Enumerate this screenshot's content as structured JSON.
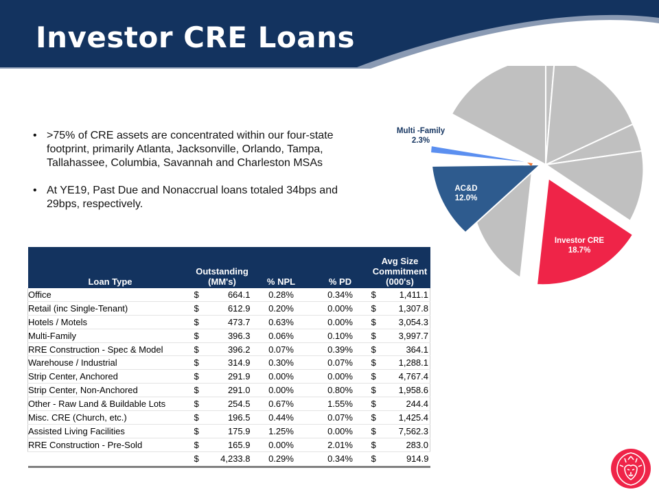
{
  "title": "Investor CRE Loans",
  "colors": {
    "navy": "#13335f",
    "brand_red": "#ef2448",
    "steel_blue": "#2e5b8e",
    "light_blue": "#5b8ff0",
    "gray": "#c0c0c0"
  },
  "bullets": [
    ">75% of CRE assets are concentrated within our four-state footprint, primarily Atlanta, Jacksonville, Orlando, Tampa, Tallahassee, Columbia, Savannah and Charleston MSAs",
    "At YE19, Past Due and Nonaccrual loans totaled 34bps and 29bps, respectively."
  ],
  "chart_data": {
    "type": "pie",
    "slices": [
      {
        "label": "Multi -Family",
        "value_label": "2.3%",
        "value": 2.3,
        "color": "#5b8ff0"
      },
      {
        "label": "AC&D",
        "value_label": "12.0%",
        "value": 12.0,
        "color": "#2e5b8e"
      },
      {
        "label": "Investor CRE",
        "value_label": "18.7%",
        "value": 18.7,
        "color": "#ef2448"
      }
    ]
  },
  "table": {
    "headers": {
      "loan_type": "Loan Type",
      "outstanding": "Outstanding (MM's)",
      "npl": "% NPL",
      "pd": "% PD",
      "avg": "Avg Size Commitment (000's)"
    },
    "currency": "$",
    "rows": [
      {
        "type": "Office",
        "outstanding": "664.1",
        "npl": "0.28%",
        "pd": "0.34%",
        "avg": "1,411.1"
      },
      {
        "type": "Retail (inc Single-Tenant)",
        "outstanding": "612.9",
        "npl": "0.20%",
        "pd": "0.00%",
        "avg": "1,307.8"
      },
      {
        "type": "Hotels / Motels",
        "outstanding": "473.7",
        "npl": "0.63%",
        "pd": "0.00%",
        "avg": "3,054.3"
      },
      {
        "type": "Multi-Family",
        "outstanding": "396.3",
        "npl": "0.06%",
        "pd": "0.10%",
        "avg": "3,997.7"
      },
      {
        "type": "RRE Construction - Spec & Model",
        "outstanding": "396.2",
        "npl": "0.07%",
        "pd": "0.39%",
        "avg": "364.1"
      },
      {
        "type": "Warehouse / Industrial",
        "outstanding": "314.9",
        "npl": "0.30%",
        "pd": "0.07%",
        "avg": "1,288.1"
      },
      {
        "type": "Strip Center, Anchored",
        "outstanding": "291.9",
        "npl": "0.00%",
        "pd": "0.00%",
        "avg": "4,767.4"
      },
      {
        "type": "Strip Center, Non-Anchored",
        "outstanding": "291.0",
        "npl": "0.00%",
        "pd": "0.80%",
        "avg": "1,958.6"
      },
      {
        "type": "Other - Raw Land & Buildable Lots",
        "outstanding": "254.5",
        "npl": "0.67%",
        "pd": "1.55%",
        "avg": "244.4"
      },
      {
        "type": "Misc. CRE (Church, etc.)",
        "outstanding": "196.5",
        "npl": "0.44%",
        "pd": "0.07%",
        "avg": "1,425.4"
      },
      {
        "type": "Assisted Living Facilities",
        "outstanding": "175.9",
        "npl": "1.25%",
        "pd": "0.00%",
        "avg": "7,562.3"
      },
      {
        "type": "RRE Construction - Pre-Sold",
        "outstanding": "165.9",
        "npl": "0.00%",
        "pd": "2.01%",
        "avg": "283.0"
      }
    ],
    "total": {
      "outstanding": "4,233.8",
      "npl": "0.29%",
      "pd": "0.34%",
      "avg": "914.9"
    }
  },
  "logo_icon": "lion-head-icon"
}
